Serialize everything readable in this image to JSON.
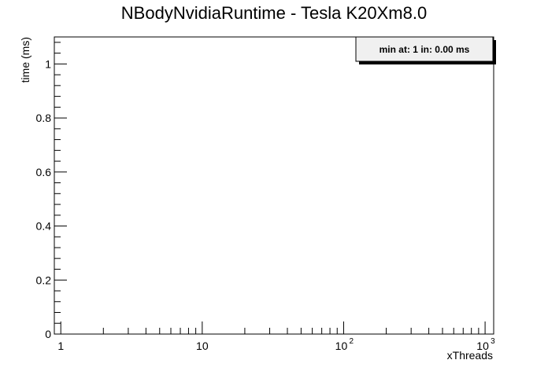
{
  "chart_data": {
    "type": "scatter",
    "title": "NBodyNvidiaRuntime - Tesla K20Xm8.0",
    "xlabel": "xThreads",
    "ylabel": "time (ms)",
    "xscale": "log",
    "xlim": [
      0.9,
      1150
    ],
    "ylim": [
      0,
      1.1
    ],
    "x_ticks": [
      {
        "value": 1,
        "base": "1",
        "exp": ""
      },
      {
        "value": 10,
        "base": "10",
        "exp": ""
      },
      {
        "value": 100,
        "base": "10",
        "exp": "2"
      },
      {
        "value": 1000,
        "base": "10",
        "exp": "3"
      }
    ],
    "y_ticks": [
      {
        "value": 0,
        "label": "0"
      },
      {
        "value": 0.2,
        "label": "0.2"
      },
      {
        "value": 0.4,
        "label": "0.4"
      },
      {
        "value": 0.6,
        "label": "0.6"
      },
      {
        "value": 0.8,
        "label": "0.8"
      },
      {
        "value": 1,
        "label": "1"
      }
    ],
    "series": [],
    "legend": {
      "text": "min at: 1 in: 0.00 ms",
      "placement": "top-right"
    },
    "grid": false
  }
}
